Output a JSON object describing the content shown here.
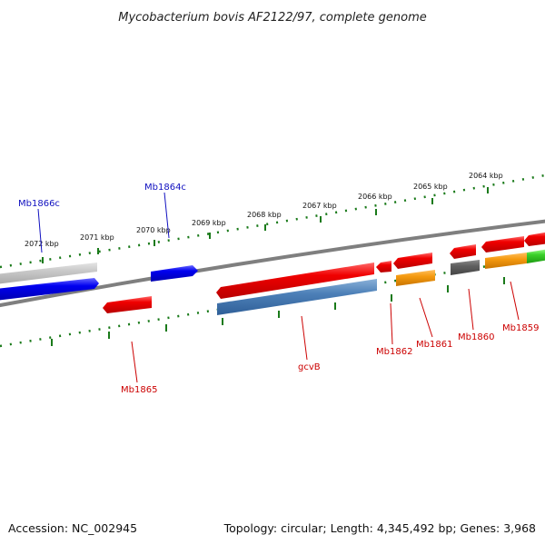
{
  "title": "Mycobacterium bovis AF2122/97, complete genome",
  "footer": {
    "accession": "Accession: NC_002945",
    "topology": "Topology: circular; Length: 4,345,492 bp; Genes: 3,968"
  },
  "colors": {
    "backbone": "#7f7f7f",
    "tick": "#1a7a1a",
    "label_blue": "#1010c0",
    "label_red": "#cc0000"
  },
  "scale_labels": [
    {
      "name": "tick-label-2072",
      "text": "2072 kbp"
    },
    {
      "name": "tick-label-2071",
      "text": "2071 kbp"
    },
    {
      "name": "tick-label-2070",
      "text": "2070 kbp"
    },
    {
      "name": "tick-label-2069",
      "text": "2069 kbp"
    },
    {
      "name": "tick-label-2068",
      "text": "2068 kbp"
    },
    {
      "name": "tick-label-2067",
      "text": "2067 kbp"
    },
    {
      "name": "tick-label-2066",
      "text": "2066 kbp"
    },
    {
      "name": "tick-label-2065",
      "text": "2065 kbp"
    },
    {
      "name": "tick-label-2064",
      "text": "2064 kbp"
    }
  ],
  "genes": [
    {
      "name": "gene-label-mb1866c",
      "label": "Mb1866c",
      "color": "blue"
    },
    {
      "name": "gene-label-mb1864c",
      "label": "Mb1864c",
      "color": "blue"
    },
    {
      "name": "gene-label-mb1865",
      "label": "Mb1865",
      "color": "red"
    },
    {
      "name": "gene-label-gcvb",
      "label": "gcvB",
      "color": "red"
    },
    {
      "name": "gene-label-mb1862",
      "label": "Mb1862",
      "color": "red"
    },
    {
      "name": "gene-label-mb1861",
      "label": "Mb1861",
      "color": "red"
    },
    {
      "name": "gene-label-mb1860",
      "label": "Mb1860",
      "color": "red"
    },
    {
      "name": "gene-label-mb1859",
      "label": "Mb1859",
      "color": "red"
    }
  ]
}
